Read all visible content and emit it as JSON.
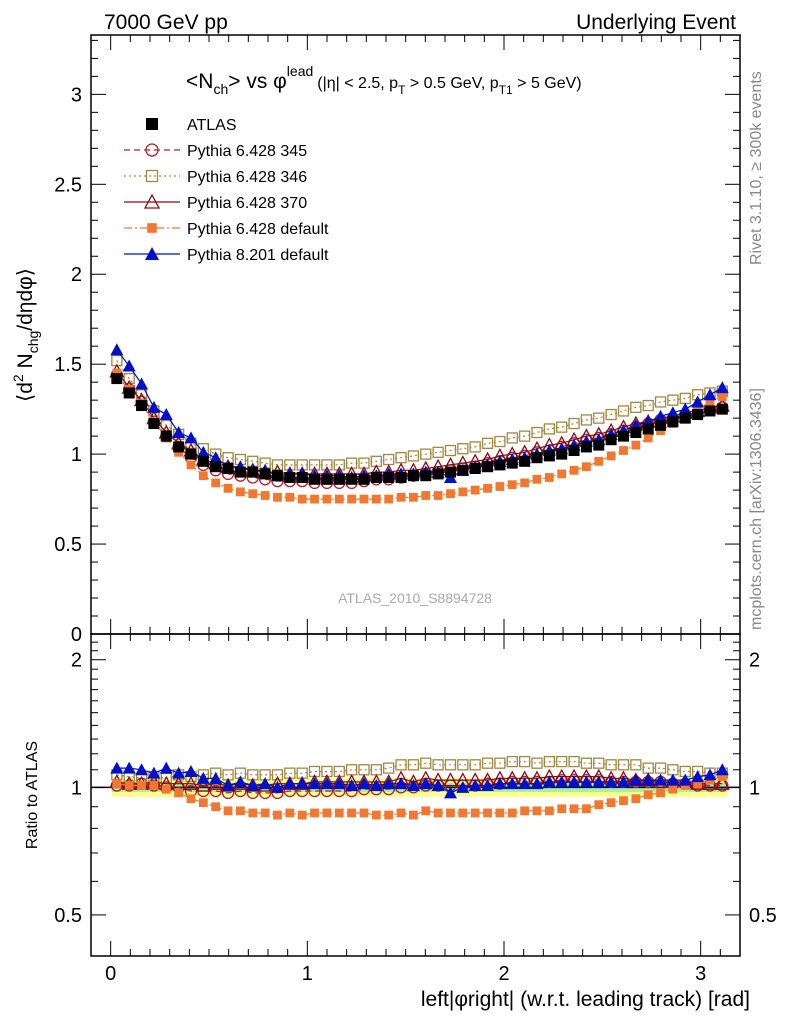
{
  "header": {
    "left": "7000 GeV pp",
    "right": "Underlying Event"
  },
  "side": {
    "rivet": "Rivet 3.1.10, ≥ 300k events",
    "mcplots": "mcplots.cern.ch [arXiv:1306.3436]"
  },
  "watermark": "ATLAS_2010_S8894728",
  "chart_data": [
    {
      "type": "scatter",
      "title": "<N_ch> vs φ^lead (|η| < 2.5, p_T > 0.5 GeV, p_T1 > 5 GeV)",
      "title_parts": {
        "main_a": "<N",
        "main_sub": "ch",
        "main_b": "> vs φ",
        "main_sup": "lead",
        "cond_a": "(|η| < 2.5, p",
        "cond_sub1": "T",
        "cond_b": " > 0.5 GeV, p",
        "cond_sub2": "T1",
        "cond_c": " > 5 GeV)"
      },
      "ylabel": "⟨d² N_chg/dηdφ⟩",
      "ylabel_parts": {
        "a": "⟨d",
        "sup": "2",
        "b": " N",
        "sub": "chg",
        "c": "/dηdφ⟩"
      },
      "xlim": [
        -0.1,
        3.2
      ],
      "ylim": [
        0,
        3.33
      ],
      "yticks": [
        0,
        0.5,
        1,
        1.5,
        2,
        2.5,
        3
      ],
      "ytick_labels": [
        "0",
        "0.5",
        "1",
        "1.5",
        "2",
        "2.5",
        "3"
      ],
      "legend_position": "top-left",
      "x": [
        0.0314,
        0.0942,
        0.1571,
        0.2199,
        0.2827,
        0.3456,
        0.4084,
        0.4712,
        0.5341,
        0.5969,
        0.6597,
        0.7226,
        0.7854,
        0.8482,
        0.9111,
        0.9739,
        1.0367,
        1.0996,
        1.1624,
        1.2252,
        1.2881,
        1.3509,
        1.4137,
        1.4765,
        1.5394,
        1.6022,
        1.665,
        1.7279,
        1.7907,
        1.8535,
        1.9164,
        1.9792,
        2.042,
        2.1049,
        2.1677,
        2.2305,
        2.2934,
        2.3562,
        2.419,
        2.4819,
        2.5447,
        2.6075,
        2.6704,
        2.7332,
        2.796,
        2.8588,
        2.9217,
        2.9845,
        3.0473,
        3.1102
      ],
      "series": [
        {
          "name": "ATLAS",
          "color": "#000000",
          "marker": "filled-square",
          "values": [
            1.42,
            1.34,
            1.27,
            1.17,
            1.1,
            1.04,
            1.0,
            0.96,
            0.93,
            0.92,
            0.9,
            0.9,
            0.89,
            0.88,
            0.87,
            0.87,
            0.86,
            0.86,
            0.86,
            0.86,
            0.86,
            0.87,
            0.87,
            0.87,
            0.88,
            0.88,
            0.89,
            0.9,
            0.91,
            0.92,
            0.93,
            0.94,
            0.95,
            0.96,
            0.98,
            0.99,
            1.0,
            1.02,
            1.04,
            1.05,
            1.08,
            1.1,
            1.12,
            1.14,
            1.16,
            1.18,
            1.2,
            1.22,
            1.24,
            1.25
          ]
        },
        {
          "name": "Pythia 6.428 345",
          "color": "#b02030",
          "marker": "open-circle",
          "dash": "6,4",
          "values": [
            1.44,
            1.36,
            1.29,
            1.18,
            1.1,
            1.04,
            0.98,
            0.94,
            0.91,
            0.89,
            0.88,
            0.87,
            0.86,
            0.85,
            0.85,
            0.85,
            0.84,
            0.84,
            0.84,
            0.84,
            0.85,
            0.86,
            0.86,
            0.87,
            0.88,
            0.89,
            0.9,
            0.91,
            0.92,
            0.93,
            0.95,
            0.96,
            0.98,
            0.99,
            1.01,
            1.02,
            1.04,
            1.06,
            1.08,
            1.09,
            1.11,
            1.13,
            1.15,
            1.17,
            1.19,
            1.2,
            1.22,
            1.23,
            1.25,
            1.26
          ]
        },
        {
          "name": "Pythia 6.428 346",
          "color": "#a08840",
          "marker": "open-square",
          "dash": "2,3",
          "values": [
            1.52,
            1.42,
            1.33,
            1.24,
            1.16,
            1.11,
            1.06,
            1.03,
            1.0,
            0.98,
            0.97,
            0.96,
            0.95,
            0.94,
            0.94,
            0.94,
            0.94,
            0.94,
            0.94,
            0.95,
            0.95,
            0.96,
            0.97,
            0.98,
            0.99,
            1.0,
            1.01,
            1.02,
            1.03,
            1.04,
            1.06,
            1.07,
            1.09,
            1.1,
            1.12,
            1.14,
            1.15,
            1.17,
            1.19,
            1.2,
            1.22,
            1.24,
            1.26,
            1.27,
            1.29,
            1.3,
            1.31,
            1.33,
            1.34,
            1.35
          ]
        },
        {
          "name": "Pythia 6.428 370",
          "color": "#8b0a14",
          "marker": "open-triangle",
          "dash": "",
          "values": [
            1.46,
            1.37,
            1.3,
            1.2,
            1.12,
            1.06,
            1.02,
            0.97,
            0.95,
            0.93,
            0.92,
            0.91,
            0.9,
            0.9,
            0.89,
            0.89,
            0.89,
            0.89,
            0.89,
            0.89,
            0.89,
            0.9,
            0.9,
            0.91,
            0.91,
            0.92,
            0.93,
            0.94,
            0.95,
            0.96,
            0.97,
            0.99,
            1.0,
            1.01,
            1.03,
            1.05,
            1.06,
            1.08,
            1.1,
            1.11,
            1.13,
            1.15,
            1.17,
            1.18,
            1.2,
            1.21,
            1.23,
            1.24,
            1.26,
            1.27
          ]
        },
        {
          "name": "Pythia 6.428 default",
          "color": "#f07830",
          "marker": "filled-small-square",
          "dash": "8,3,2,3",
          "values": [
            1.45,
            1.36,
            1.28,
            1.18,
            1.09,
            1.01,
            0.94,
            0.88,
            0.84,
            0.81,
            0.79,
            0.78,
            0.77,
            0.76,
            0.76,
            0.75,
            0.75,
            0.75,
            0.75,
            0.75,
            0.75,
            0.75,
            0.75,
            0.76,
            0.76,
            0.77,
            0.77,
            0.78,
            0.79,
            0.8,
            0.81,
            0.82,
            0.83,
            0.84,
            0.86,
            0.87,
            0.89,
            0.91,
            0.93,
            0.96,
            0.99,
            1.02,
            1.05,
            1.09,
            1.13,
            1.17,
            1.21,
            1.25,
            1.29,
            1.32
          ]
        },
        {
          "name": "Pythia 8.201 default",
          "color": "#0010c8",
          "marker": "filled-triangle",
          "dash": "",
          "values": [
            1.58,
            1.49,
            1.39,
            1.26,
            1.22,
            1.12,
            1.09,
            1.01,
            0.98,
            0.93,
            0.93,
            0.91,
            0.91,
            0.88,
            0.89,
            0.89,
            0.88,
            0.88,
            0.88,
            0.87,
            0.88,
            0.88,
            0.89,
            0.89,
            0.89,
            0.9,
            0.9,
            0.87,
            0.91,
            0.93,
            0.94,
            0.96,
            0.97,
            0.98,
            1.0,
            1.02,
            1.03,
            1.05,
            1.07,
            1.08,
            1.11,
            1.13,
            1.16,
            1.18,
            1.21,
            1.23,
            1.25,
            1.29,
            1.33,
            1.37
          ]
        }
      ]
    },
    {
      "type": "scatter",
      "ylabel": "Ratio to ATLAS",
      "xlabel": "left|φright| (w.r.t. leading track) [rad]",
      "xlim": [
        -0.1,
        3.2
      ],
      "ylim": [
        0.4,
        2.3
      ],
      "log_y": true,
      "xticks": [
        0,
        1,
        2,
        3
      ],
      "xtick_labels": [
        "0",
        "1",
        "2",
        "3"
      ],
      "yticks": [
        0.5,
        1,
        2
      ],
      "ytick_labels": [
        "0.5",
        "1",
        "2"
      ],
      "reference_line": 1,
      "bands": [
        {
          "color": "#ffff88",
          "low": 0.95,
          "high": 1.05
        },
        {
          "color": "#a8f0a0",
          "low": 0.975,
          "high": 1.025
        }
      ],
      "series": [
        {
          "name": "Pythia 6.428 345",
          "values": [
            1.01,
            1.01,
            1.02,
            1.01,
            1.0,
            1.0,
            0.98,
            0.98,
            0.98,
            0.97,
            0.98,
            0.97,
            0.97,
            0.97,
            0.98,
            0.98,
            0.98,
            0.98,
            0.98,
            0.98,
            0.99,
            0.99,
            0.99,
            1.0,
            1.0,
            1.01,
            1.01,
            1.01,
            1.01,
            1.01,
            1.02,
            1.02,
            1.03,
            1.03,
            1.03,
            1.03,
            1.04,
            1.04,
            1.04,
            1.04,
            1.03,
            1.03,
            1.03,
            1.03,
            1.03,
            1.02,
            1.02,
            1.01,
            1.01,
            1.01
          ]
        },
        {
          "name": "Pythia 6.428 346",
          "values": [
            1.07,
            1.06,
            1.05,
            1.06,
            1.05,
            1.07,
            1.06,
            1.07,
            1.08,
            1.07,
            1.08,
            1.07,
            1.07,
            1.07,
            1.08,
            1.08,
            1.09,
            1.09,
            1.09,
            1.1,
            1.1,
            1.1,
            1.11,
            1.13,
            1.13,
            1.14,
            1.13,
            1.13,
            1.13,
            1.13,
            1.14,
            1.14,
            1.15,
            1.15,
            1.14,
            1.15,
            1.15,
            1.15,
            1.14,
            1.14,
            1.13,
            1.13,
            1.13,
            1.11,
            1.11,
            1.1,
            1.09,
            1.09,
            1.08,
            1.08
          ]
        },
        {
          "name": "Pythia 6.428 370",
          "values": [
            1.03,
            1.02,
            1.02,
            1.03,
            1.02,
            1.02,
            1.02,
            1.01,
            1.02,
            1.01,
            1.02,
            1.01,
            1.01,
            1.02,
            1.02,
            1.02,
            1.03,
            1.03,
            1.03,
            1.03,
            1.03,
            1.03,
            1.03,
            1.05,
            1.03,
            1.05,
            1.04,
            1.04,
            1.04,
            1.04,
            1.04,
            1.05,
            1.05,
            1.05,
            1.05,
            1.06,
            1.06,
            1.06,
            1.06,
            1.06,
            1.05,
            1.05,
            1.04,
            1.04,
            1.03,
            1.03,
            1.03,
            1.02,
            1.02,
            1.02
          ]
        },
        {
          "name": "Pythia 6.428 default",
          "values": [
            1.02,
            1.01,
            1.01,
            1.01,
            0.99,
            0.97,
            0.94,
            0.92,
            0.9,
            0.88,
            0.88,
            0.87,
            0.87,
            0.86,
            0.87,
            0.86,
            0.87,
            0.87,
            0.87,
            0.87,
            0.87,
            0.86,
            0.86,
            0.87,
            0.86,
            0.88,
            0.87,
            0.87,
            0.87,
            0.87,
            0.87,
            0.87,
            0.87,
            0.88,
            0.88,
            0.88,
            0.89,
            0.89,
            0.89,
            0.91,
            0.92,
            0.93,
            0.94,
            0.96,
            0.97,
            0.99,
            1.01,
            1.02,
            1.04,
            1.06
          ]
        },
        {
          "name": "Pythia 8.201 default",
          "values": [
            1.11,
            1.11,
            1.1,
            1.08,
            1.11,
            1.08,
            1.09,
            1.05,
            1.05,
            1.01,
            1.03,
            1.01,
            1.02,
            1.0,
            1.02,
            1.02,
            1.02,
            1.02,
            1.02,
            1.01,
            1.02,
            1.01,
            1.02,
            1.02,
            1.01,
            1.02,
            1.01,
            0.97,
            1.0,
            1.01,
            1.01,
            1.02,
            1.02,
            1.02,
            1.02,
            1.03,
            1.03,
            1.03,
            1.03,
            1.03,
            1.03,
            1.03,
            1.04,
            1.04,
            1.04,
            1.04,
            1.04,
            1.06,
            1.07,
            1.1
          ]
        }
      ]
    }
  ]
}
